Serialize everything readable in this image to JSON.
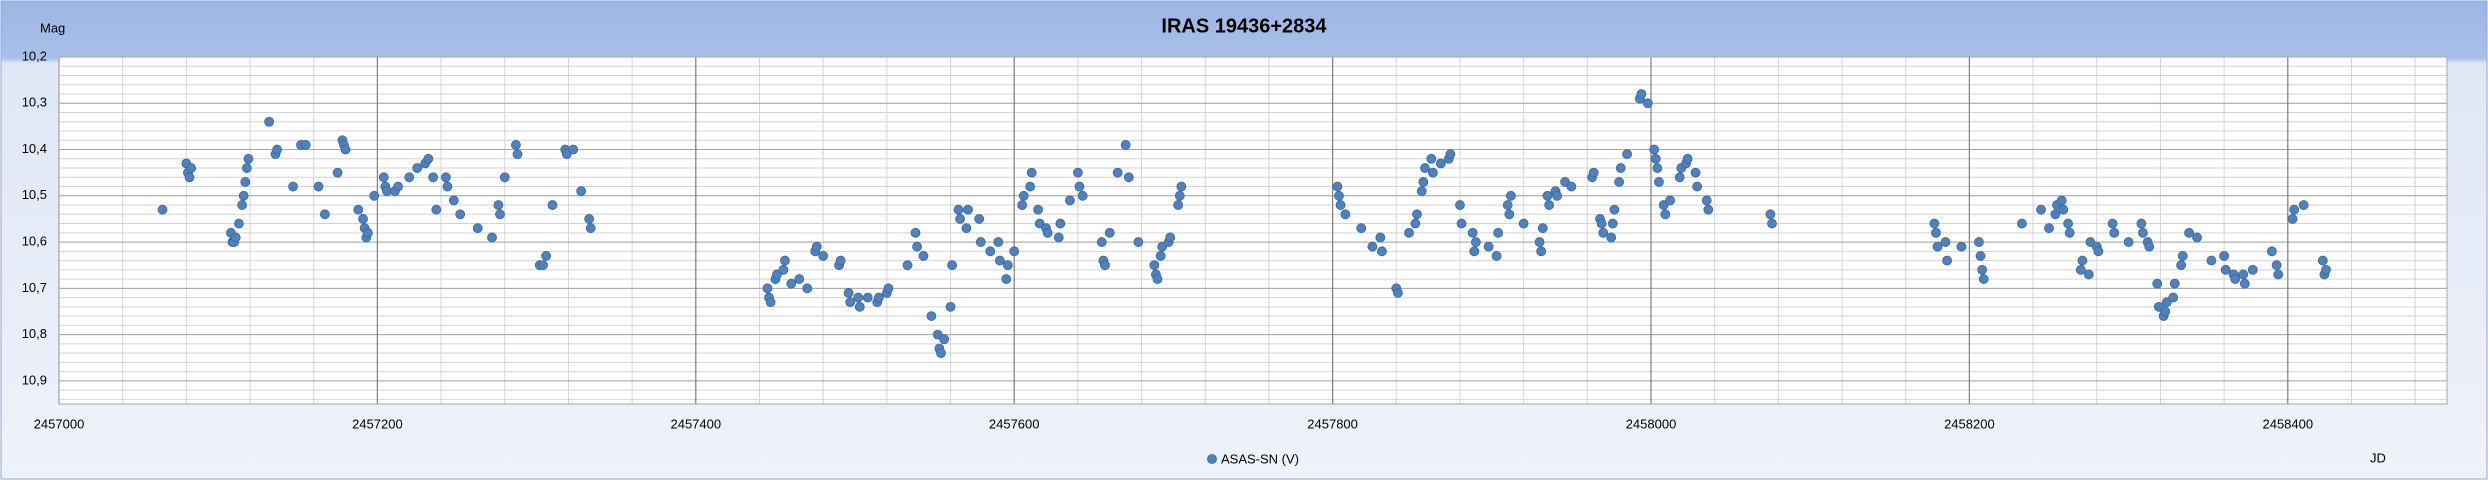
{
  "chart_data": {
    "type": "scatter",
    "title": "IRAS 19436+2834",
    "y_label": "Mag",
    "x_label": "JD",
    "y_inverted": true,
    "grid": true,
    "minor_grid": true,
    "legend": "bottom",
    "xlim": [
      2457000,
      2458500
    ],
    "xticks": [
      2457000,
      2457200,
      2457400,
      2457600,
      2457800,
      2458000,
      2458200,
      2458400
    ],
    "ylim": [
      10.2,
      10.95
    ],
    "yticks": [
      {
        "value": 10.2,
        "label": "10,2"
      },
      {
        "value": 10.3,
        "label": "10,3"
      },
      {
        "value": 10.4,
        "label": "10,4"
      },
      {
        "value": 10.5,
        "label": "10,5"
      },
      {
        "value": 10.6,
        "label": "10,6"
      },
      {
        "value": 10.7,
        "label": "10,7"
      },
      {
        "value": 10.8,
        "label": "10,8"
      },
      {
        "value": 10.9,
        "label": "10,9"
      }
    ],
    "series": [
      {
        "name": "ASAS-SN (V)",
        "color": "#4f81bd",
        "x": [
          2457065,
          2457080,
          2457081,
          2457082,
          2457083,
          2457108,
          2457109,
          2457110,
          2457111,
          2457113,
          2457115,
          2457116,
          2457117,
          2457118,
          2457119,
          2457132,
          2457136,
          2457137,
          2457147,
          2457152,
          2457155,
          2457163,
          2457167,
          2457175,
          2457178,
          2457179,
          2457180,
          2457188,
          2457191,
          2457192,
          2457193,
          2457194,
          2457198,
          2457204,
          2457205,
          2457206,
          2457211,
          2457213,
          2457220,
          2457225,
          2457230,
          2457232,
          2457235,
          2457237,
          2457243,
          2457244,
          2457248,
          2457252,
          2457263,
          2457272,
          2457276,
          2457277,
          2457280,
          2457287,
          2457288,
          2457302,
          2457304,
          2457306,
          2457310,
          2457318,
          2457319,
          2457323,
          2457328,
          2457333,
          2457334,
          2457445,
          2457446,
          2457447,
          2457450,
          2457451,
          2457455,
          2457456,
          2457460,
          2457465,
          2457470,
          2457475,
          2457476,
          2457480,
          2457490,
          2457491,
          2457496,
          2457497,
          2457502,
          2457503,
          2457508,
          2457514,
          2457515,
          2457520,
          2457521,
          2457533,
          2457538,
          2457539,
          2457543,
          2457548,
          2457552,
          2457553,
          2457554,
          2457556,
          2457560,
          2457561,
          2457565,
          2457566,
          2457570,
          2457571,
          2457578,
          2457579,
          2457585,
          2457590,
          2457591,
          2457595,
          2457596,
          2457600,
          2457605,
          2457606,
          2457610,
          2457611,
          2457615,
          2457616,
          2457620,
          2457621,
          2457628,
          2457629,
          2457635,
          2457640,
          2457641,
          2457643,
          2457655,
          2457656,
          2457657,
          2457660,
          2457665,
          2457670,
          2457672,
          2457678,
          2457688,
          2457689,
          2457690,
          2457692,
          2457693,
          2457697,
          2457698,
          2457703,
          2457704,
          2457705,
          2457803,
          2457804,
          2457805,
          2457808,
          2457818,
          2457825,
          2457830,
          2457831,
          2457840,
          2457841,
          2457848,
          2457852,
          2457853,
          2457856,
          2457857,
          2457858,
          2457862,
          2457863,
          2457868,
          2457873,
          2457874,
          2457880,
          2457881,
          2457888,
          2457889,
          2457890,
          2457898,
          2457903,
          2457904,
          2457910,
          2457911,
          2457912,
          2457920,
          2457930,
          2457931,
          2457932,
          2457935,
          2457936,
          2457940,
          2457941,
          2457946,
          2457950,
          2457963,
          2457964,
          2457968,
          2457969,
          2457970,
          2457975,
          2457976,
          2457977,
          2457980,
          2457981,
          2457985,
          2457993,
          2457994,
          2457998,
          2458002,
          2458003,
          2458004,
          2458005,
          2458008,
          2458009,
          2458012,
          2458018,
          2458019,
          2458022,
          2458023,
          2458028,
          2458029,
          2458035,
          2458036,
          2458075,
          2458076,
          2458178,
          2458179,
          2458180,
          2458185,
          2458186,
          2458195,
          2458206,
          2458207,
          2458208,
          2458209,
          2458233,
          2458245,
          2458250,
          2458254,
          2458255,
          2458258,
          2458259,
          2458262,
          2458263,
          2458270,
          2458271,
          2458275,
          2458276,
          2458280,
          2458281,
          2458290,
          2458291,
          2458300,
          2458308,
          2458309,
          2458312,
          2458313,
          2458318,
          2458319,
          2458322,
          2458323,
          2458324,
          2458328,
          2458329,
          2458333,
          2458334,
          2458338,
          2458343,
          2458352,
          2458360,
          2458361,
          2458366,
          2458367,
          2458372,
          2458373,
          2458378,
          2458390,
          2458393,
          2458394,
          2458403,
          2458404,
          2458410,
          2458422,
          2458423,
          2458424
        ],
        "values": [
          10.53,
          10.43,
          10.45,
          10.46,
          10.44,
          10.58,
          10.6,
          10.6,
          10.59,
          10.56,
          10.52,
          10.5,
          10.47,
          10.44,
          10.42,
          10.34,
          10.41,
          10.4,
          10.48,
          10.39,
          10.39,
          10.48,
          10.54,
          10.45,
          10.38,
          10.39,
          10.4,
          10.53,
          10.55,
          10.57,
          10.59,
          10.58,
          10.5,
          10.46,
          10.48,
          10.49,
          10.49,
          10.48,
          10.46,
          10.44,
          10.43,
          10.42,
          10.46,
          10.53,
          10.46,
          10.48,
          10.51,
          10.54,
          10.57,
          10.59,
          10.52,
          10.54,
          10.46,
          10.39,
          10.41,
          10.65,
          10.65,
          10.63,
          10.52,
          10.4,
          10.41,
          10.4,
          10.49,
          10.55,
          10.57,
          10.7,
          10.72,
          10.73,
          10.68,
          10.67,
          10.66,
          10.64,
          10.69,
          10.68,
          10.7,
          10.62,
          10.61,
          10.63,
          10.65,
          10.64,
          10.71,
          10.73,
          10.72,
          10.74,
          10.72,
          10.73,
          10.72,
          10.71,
          10.7,
          10.65,
          10.58,
          10.61,
          10.63,
          10.76,
          10.8,
          10.83,
          10.84,
          10.81,
          10.74,
          10.65,
          10.53,
          10.55,
          10.57,
          10.53,
          10.55,
          10.6,
          10.62,
          10.6,
          10.64,
          10.68,
          10.65,
          10.62,
          10.52,
          10.5,
          10.48,
          10.45,
          10.53,
          10.56,
          10.57,
          10.58,
          10.59,
          10.56,
          10.51,
          10.45,
          10.48,
          10.5,
          10.6,
          10.64,
          10.65,
          10.58,
          10.45,
          10.39,
          10.46,
          10.6,
          10.65,
          10.67,
          10.68,
          10.63,
          10.61,
          10.6,
          10.59,
          10.52,
          10.5,
          10.48,
          10.48,
          10.5,
          10.52,
          10.54,
          10.57,
          10.61,
          10.59,
          10.62,
          10.7,
          10.71,
          10.58,
          10.56,
          10.54,
          10.49,
          10.47,
          10.44,
          10.42,
          10.45,
          10.43,
          10.42,
          10.41,
          10.52,
          10.56,
          10.58,
          10.62,
          10.6,
          10.61,
          10.63,
          10.58,
          10.52,
          10.54,
          10.5,
          10.56,
          10.6,
          10.62,
          10.57,
          10.5,
          10.52,
          10.49,
          10.5,
          10.47,
          10.48,
          10.46,
          10.45,
          10.55,
          10.56,
          10.58,
          10.59,
          10.56,
          10.53,
          10.47,
          10.44,
          10.41,
          10.29,
          10.28,
          10.3,
          10.4,
          10.42,
          10.44,
          10.47,
          10.52,
          10.54,
          10.51,
          10.46,
          10.44,
          10.43,
          10.42,
          10.45,
          10.48,
          10.51,
          10.53,
          10.54,
          10.56,
          10.56,
          10.58,
          10.61,
          10.6,
          10.64,
          10.61,
          10.6,
          10.63,
          10.66,
          10.68,
          10.56,
          10.53,
          10.57,
          10.54,
          10.52,
          10.51,
          10.53,
          10.56,
          10.58,
          10.66,
          10.64,
          10.67,
          10.6,
          10.61,
          10.62,
          10.56,
          10.58,
          10.6,
          10.56,
          10.58,
          10.6,
          10.61,
          10.69,
          10.74,
          10.76,
          10.75,
          10.73,
          10.72,
          10.69,
          10.65,
          10.63,
          10.58,
          10.59,
          10.64,
          10.63,
          10.66,
          10.67,
          10.68,
          10.67,
          10.69,
          10.66,
          10.62,
          10.65,
          10.67,
          10.55,
          10.53,
          10.52,
          10.64,
          10.67,
          10.66
        ]
      }
    ]
  }
}
